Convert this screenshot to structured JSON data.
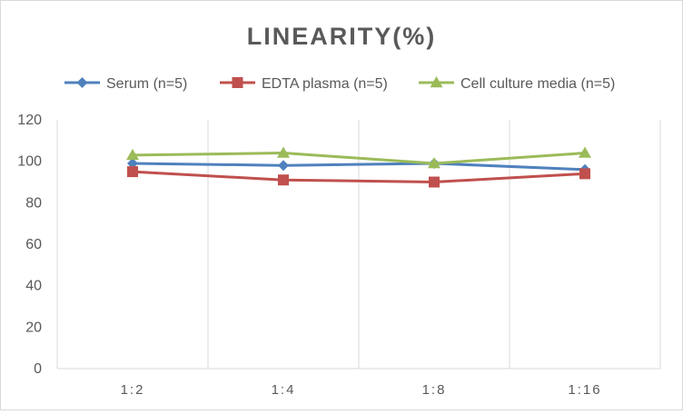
{
  "chart_data": {
    "type": "line",
    "title": "LINEARITY(%)",
    "xlabel": "",
    "ylabel": "",
    "categories": [
      "1:2",
      "1:4",
      "1:8",
      "1:16"
    ],
    "ylim": [
      0,
      120
    ],
    "yticks": [
      0,
      20,
      40,
      60,
      80,
      100,
      120
    ],
    "grid": "vertical",
    "legend_position": "top",
    "series": [
      {
        "name": "Serum (n=5)",
        "values": [
          99,
          98,
          99,
          96
        ],
        "color": "#4f81bd",
        "marker": "diamond"
      },
      {
        "name": "EDTA plasma (n=5)",
        "values": [
          95,
          91,
          90,
          94
        ],
        "color": "#c0504d",
        "marker": "square"
      },
      {
        "name": "Cell culture media (n=5)",
        "values": [
          103,
          104,
          99,
          104
        ],
        "color": "#9bbb59",
        "marker": "triangle"
      }
    ]
  }
}
